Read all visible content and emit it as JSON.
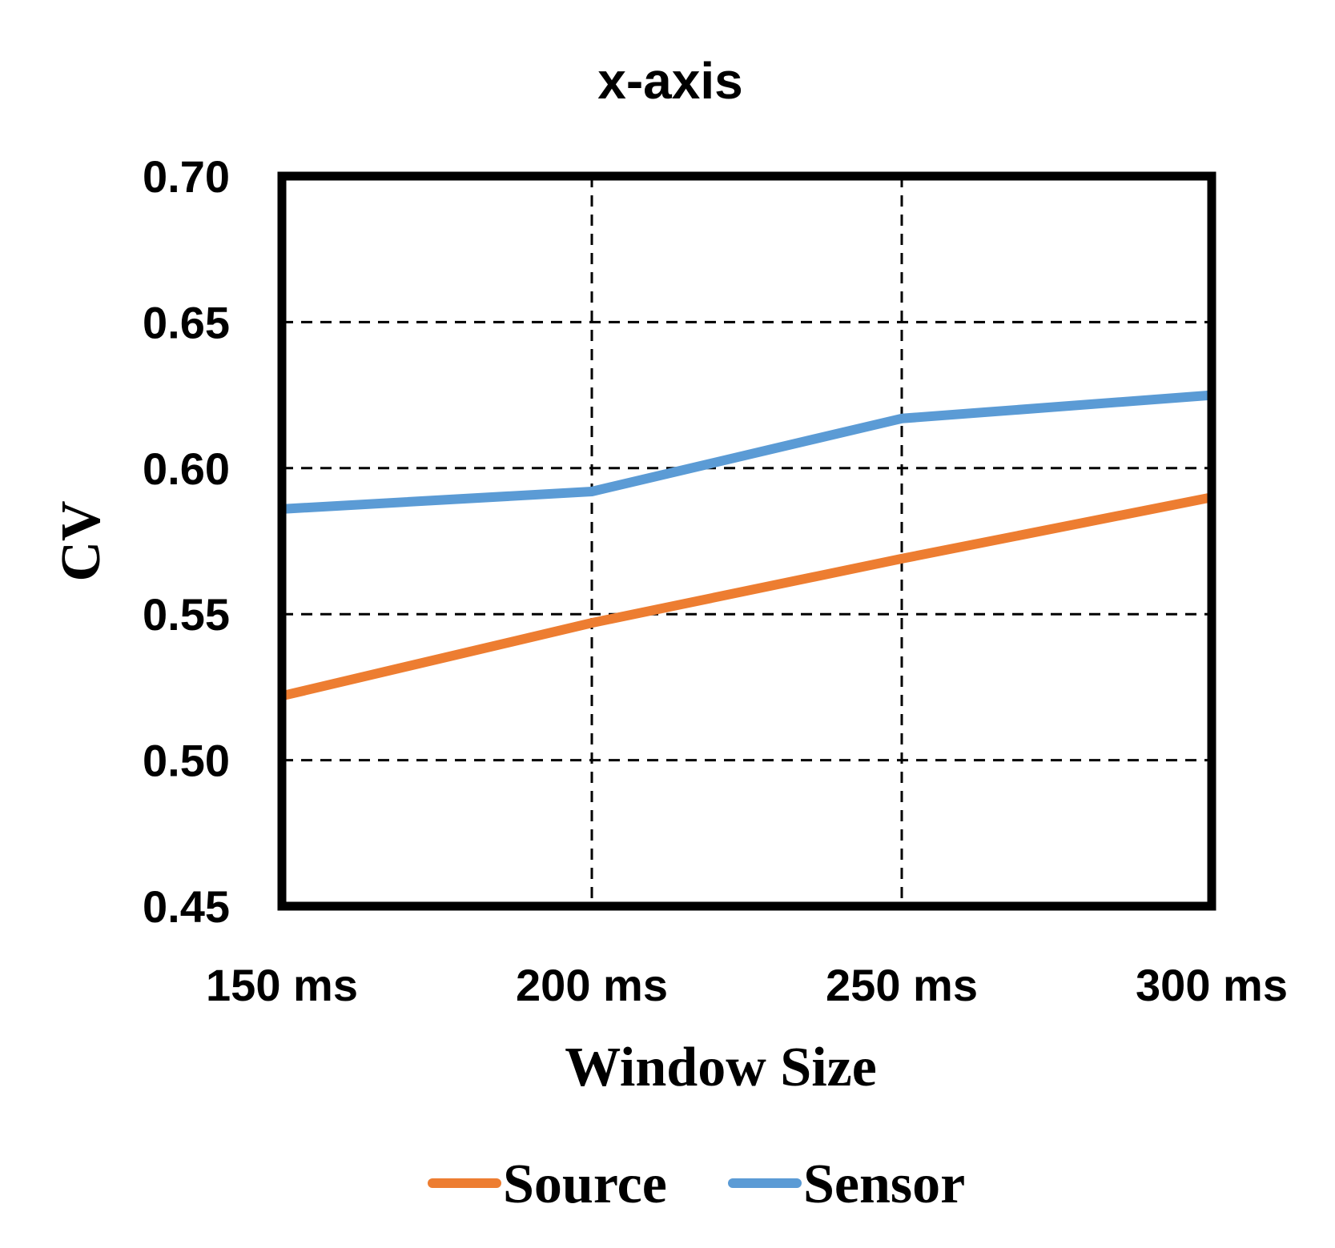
{
  "chart_data": {
    "type": "line",
    "title": "x-axis",
    "xlabel": "Window Size",
    "ylabel": "CV",
    "categories": [
      "150 ms",
      "200 ms",
      "250 ms",
      "300 ms"
    ],
    "ylim": [
      0.45,
      0.7
    ],
    "yticks": [
      0.45,
      0.5,
      0.55,
      0.6,
      0.65,
      0.7
    ],
    "ytick_labels": [
      "0.45",
      "0.50",
      "0.55",
      "0.60",
      "0.65",
      "0.70"
    ],
    "grid": "dashed",
    "legend": "bottom",
    "series": [
      {
        "name": "Source",
        "color": "#ED7D31",
        "values": [
          0.522,
          0.547,
          0.569,
          0.59
        ]
      },
      {
        "name": "Sensor",
        "color": "#5B9BD5",
        "values": [
          0.586,
          0.592,
          0.617,
          0.625
        ]
      }
    ]
  }
}
